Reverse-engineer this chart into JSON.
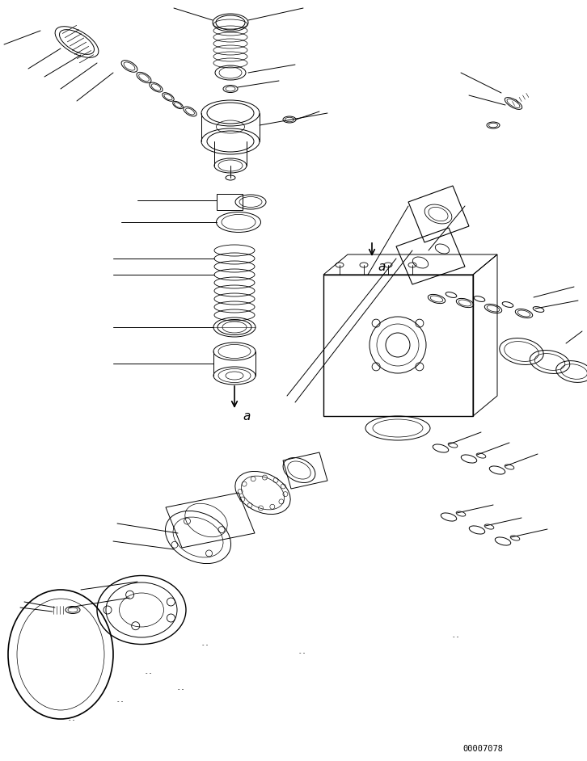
{
  "doc_number": "00007078",
  "background_color": "#ffffff",
  "line_color": "#000000",
  "fig_width": 7.26,
  "fig_height": 9.42,
  "dpi": 100
}
